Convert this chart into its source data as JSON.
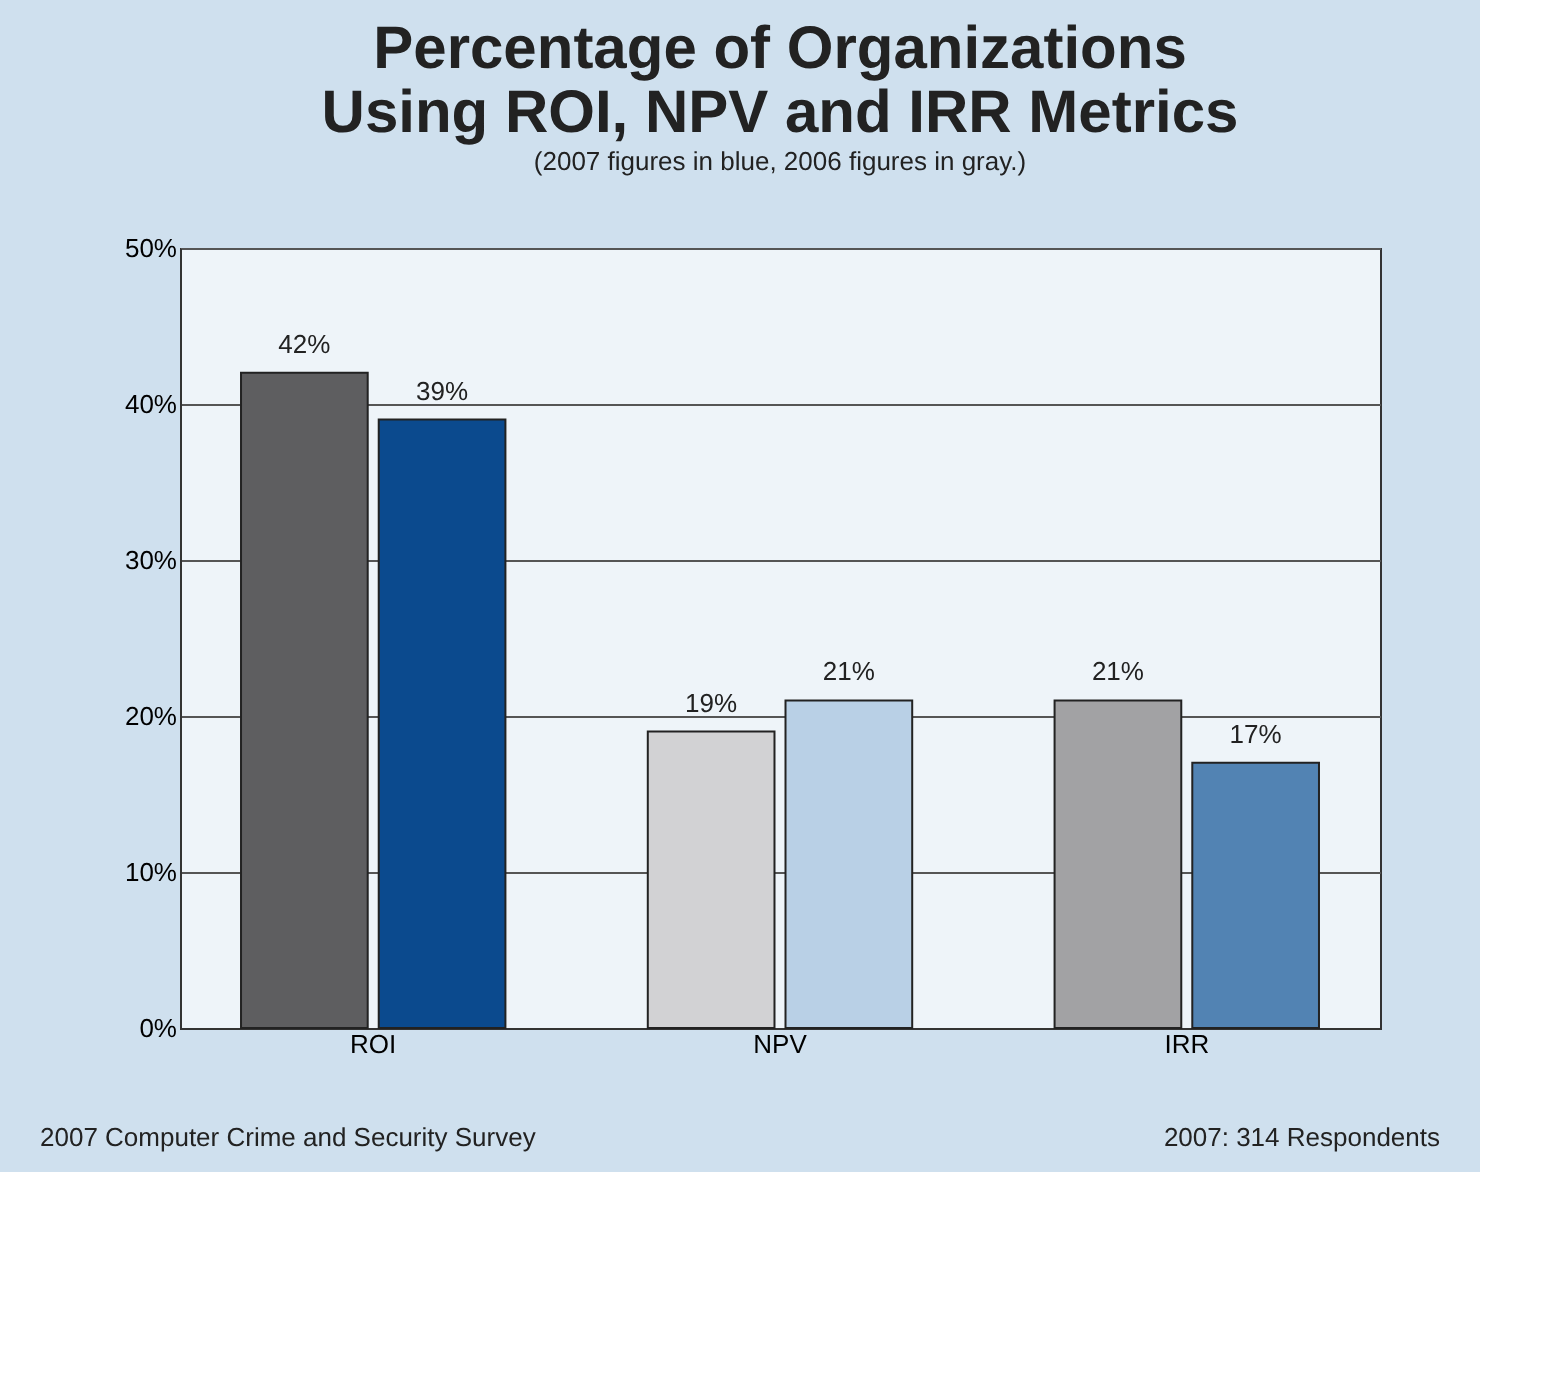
{
  "chart_data": {
    "type": "bar",
    "title": [
      "Percentage of Organizations",
      "Using ROI, NPV and IRR Metrics"
    ],
    "subtitle": "(2007 figures in blue, 2006 figures in gray.)",
    "categories": [
      "ROI",
      "NPV",
      "IRR"
    ],
    "series": [
      {
        "colors": [
          "#5e5e60",
          "#d2d2d4",
          "#a2a2a4"
        ],
        "values": [
          42,
          19,
          21
        ],
        "value_labels": [
          "42%",
          "19%",
          "21%"
        ]
      },
      {
        "colors": [
          "#0b4a8e",
          "#b9d0e6",
          "#5283b3"
        ],
        "values": [
          39,
          21,
          17
        ],
        "value_labels": [
          "39%",
          "21%",
          "17%"
        ]
      }
    ],
    "ylim": [
      0,
      50
    ],
    "yticks": [
      {
        "value": 0,
        "label": "0%"
      },
      {
        "value": 10,
        "label": "10%"
      },
      {
        "value": 20,
        "label": "20%"
      },
      {
        "value": 30,
        "label": "30%"
      },
      {
        "value": 40,
        "label": "40%"
      },
      {
        "value": 50,
        "label": "50%"
      }
    ],
    "grid": "y",
    "legend": false,
    "annotations": [
      "2007 Computer Crime and Security Survey",
      "2007: 314 Respondents"
    ]
  }
}
